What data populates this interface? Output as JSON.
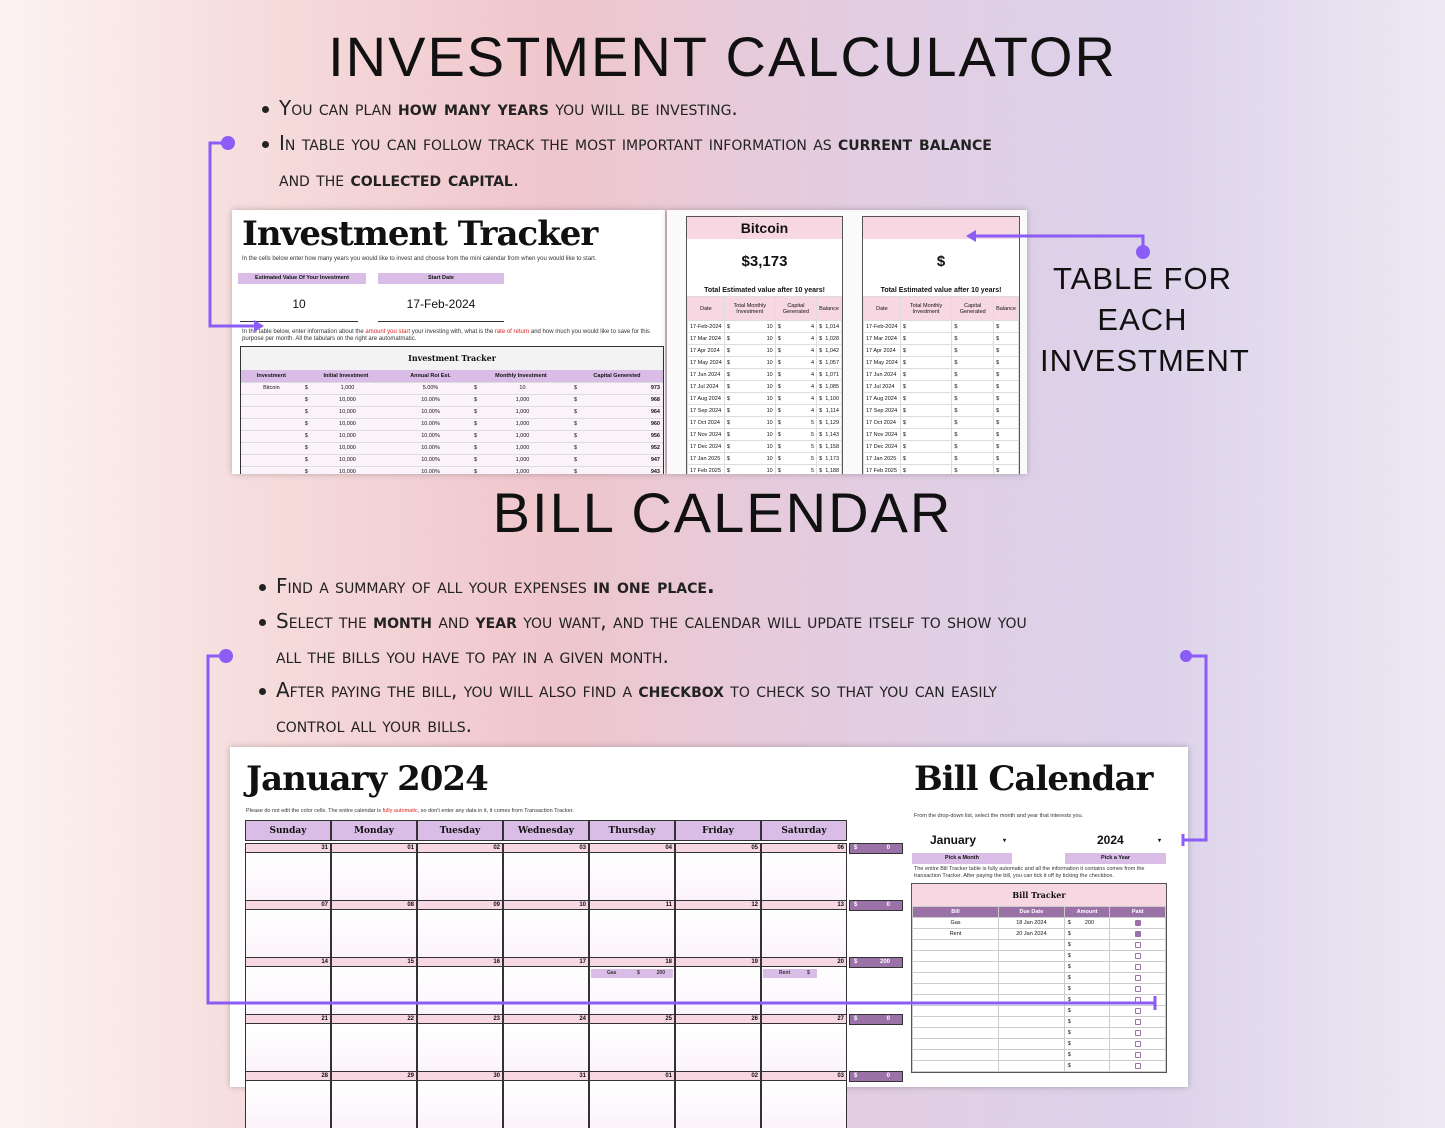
{
  "sections": {
    "investment": {
      "title": "INVESTMENT CALCULATOR",
      "bullets": [
        [
          {
            "t": "You can plan "
          },
          {
            "t": "how many years",
            "b": true
          },
          {
            "t": " you will be investing."
          }
        ],
        [
          {
            "t": "In table you can follow  track the most important information as "
          },
          {
            "t": "current balance",
            "b": true
          }
        ],
        [
          {
            "t": "and the "
          },
          {
            "t": "collected capital",
            "b": true
          },
          {
            "t": "."
          }
        ]
      ],
      "side_note": "TABLE FOR EACH INVESTMENT"
    },
    "bills": {
      "title": "BILL CALENDAR",
      "bullets": [
        [
          {
            "t": "Find a summary of all your expenses "
          },
          {
            "t": "in one place.",
            "b": true
          }
        ],
        [
          {
            "t": "Select the "
          },
          {
            "t": "month",
            "b": true
          },
          {
            "t": " and "
          },
          {
            "t": "year",
            "b": true
          },
          {
            "t": " you want, and the calendar will update itself to show you"
          }
        ],
        [
          {
            "t": "all the bills you have to pay in a given month."
          }
        ],
        [
          {
            "t": "After paying the bill, you will also find a "
          },
          {
            "t": "checkbox",
            "b": true
          },
          {
            "t": " to check so that you can easily"
          }
        ],
        [
          {
            "t": "control all your bills."
          }
        ]
      ]
    }
  },
  "tracker": {
    "title": "Investment Tracker",
    "intro": "In the cells below enter how many years you would like to invest and choose from the mini calendar from when you would like to start.",
    "years_label": "Estimated Value Of Your Investment",
    "years_value": "10",
    "start_label": "Start Date",
    "start_value": "17-Feb-2024",
    "note_a": "In the table below, enter information about the ",
    "note_red1": "amount you start",
    "note_b": " your investing with, what is the ",
    "note_red2": "rate of return",
    "note_c": " and how much you would like to save for this purpose per month. All the tabulars on the right are automatmatic.",
    "table_title": "Investment Tracker",
    "columns": [
      "Investment",
      "Initial Investment",
      "Annual Roi Est.",
      "Monthly Investment",
      "Capital Genereted"
    ],
    "rows": [
      [
        "Bitcoin",
        "1,000",
        "5.00%",
        "10",
        "973"
      ],
      [
        "",
        "10,000",
        "10.00%",
        "1,000",
        "968"
      ],
      [
        "",
        "10,000",
        "10.00%",
        "1,000",
        "964"
      ],
      [
        "",
        "10,000",
        "10.00%",
        "1,000",
        "960"
      ],
      [
        "",
        "10,000",
        "10.00%",
        "1,000",
        "956"
      ],
      [
        "",
        "10,000",
        "10.00%",
        "1,000",
        "952"
      ],
      [
        "",
        "10,000",
        "10.00%",
        "1,000",
        "947"
      ],
      [
        "",
        "10,000",
        "10.00%",
        "1,000",
        "943"
      ]
    ]
  },
  "mini_tables": [
    {
      "name": "Bitcoin",
      "total": "$3,173",
      "caption": "Total Estimated value after 10 years!",
      "columns": [
        "Date",
        "Total Monthly Investment",
        "Capital Generated",
        "Balance"
      ],
      "rows": [
        [
          "17-Feb-2024",
          "10",
          "4",
          "1,014"
        ],
        [
          "17 Mar 2024",
          "10",
          "4",
          "1,028"
        ],
        [
          "17 Apr 2024",
          "10",
          "4",
          "1,042"
        ],
        [
          "17 May 2024",
          "10",
          "4",
          "1,057"
        ],
        [
          "17 Jun 2024",
          "10",
          "4",
          "1,071"
        ],
        [
          "17 Jul 2024",
          "10",
          "4",
          "1,085"
        ],
        [
          "17 Aug 2024",
          "10",
          "4",
          "1,100"
        ],
        [
          "17 Sep 2024",
          "10",
          "4",
          "1,114"
        ],
        [
          "17 Oct 2024",
          "10",
          "5",
          "1,129"
        ],
        [
          "17 Nov 2024",
          "10",
          "5",
          "1,143"
        ],
        [
          "17 Dec 2024",
          "10",
          "5",
          "1,158"
        ],
        [
          "17 Jan 2025",
          "10",
          "5",
          "1,173"
        ],
        [
          "17 Feb 2025",
          "10",
          "5",
          "1,188"
        ]
      ]
    },
    {
      "name": "",
      "total": "$",
      "caption": "Total Estimated value after 10 years!",
      "columns": [
        "Date",
        "Total Monthly Investment",
        "Capital Generated",
        "Balance"
      ],
      "rows": [
        [
          "17-Feb-2024",
          "",
          "",
          ""
        ],
        [
          "17 Mar 2024",
          "",
          "",
          ""
        ],
        [
          "17 Apr 2024",
          "",
          "",
          ""
        ],
        [
          "17 May 2024",
          "",
          "",
          ""
        ],
        [
          "17 Jun 2024",
          "",
          "",
          ""
        ],
        [
          "17 Jul 2024",
          "",
          "",
          ""
        ],
        [
          "17 Aug 2024",
          "",
          "",
          ""
        ],
        [
          "17 Sep 2024",
          "",
          "",
          ""
        ],
        [
          "17 Oct 2024",
          "",
          "",
          ""
        ],
        [
          "17 Nov 2024",
          "",
          "",
          ""
        ],
        [
          "17 Dec 2024",
          "",
          "",
          ""
        ],
        [
          "17 Jan 2025",
          "",
          "",
          ""
        ],
        [
          "17 Feb 2025",
          "",
          "",
          ""
        ]
      ]
    }
  ],
  "calendar": {
    "title": "January 2024",
    "note_a": "Please do not edit the color cells. The entire calendar is ",
    "note_red": "fully automatic",
    "note_b": ", so don't enter any data in it, it comes from Transaction Tracker.",
    "days": [
      "Sunday",
      "Monday",
      "Tuesday",
      "Wednesday",
      "Thursday",
      "Friday",
      "Saturday"
    ],
    "weeks": [
      {
        "dates": [
          "31",
          "01",
          "02",
          "03",
          "04",
          "05",
          "06"
        ],
        "total": "0",
        "events": []
      },
      {
        "dates": [
          "07",
          "08",
          "09",
          "10",
          "11",
          "12",
          "13"
        ],
        "total": "0",
        "events": []
      },
      {
        "dates": [
          "14",
          "15",
          "16",
          "17",
          "18",
          "19",
          "20"
        ],
        "total": "200",
        "events": [
          {
            "day": 4,
            "bill": "Gas",
            "amount": "200"
          },
          {
            "day": 6,
            "bill": "Rent",
            "amount": ""
          }
        ]
      },
      {
        "dates": [
          "21",
          "22",
          "23",
          "24",
          "25",
          "26",
          "27"
        ],
        "total": "0",
        "events": []
      },
      {
        "dates": [
          "28",
          "29",
          "30",
          "31",
          "01",
          "02",
          "03"
        ],
        "total": "0",
        "events": []
      }
    ],
    "currency": "$"
  },
  "bill_calendar": {
    "title": "Bill Calendar",
    "intro": "From the drop-down list, select the month and year that interests you.",
    "month": "January",
    "month_label": "Pick a Month",
    "year": "2024",
    "year_label": "Pick a Year",
    "note": "The entire Bill Tracker table is fully automatic and all the information it contains comes from the transaction Tracker. After paying the bill, you can tick it off by ticking the checkbox.",
    "table_title": "Bill Tracker",
    "columns": [
      "Bill",
      "Due Date",
      "Amount",
      "Paid"
    ],
    "rows": [
      {
        "bill": "Gas",
        "due": "18 Jan 2024",
        "amount": "200",
        "paid": true
      },
      {
        "bill": "Rent",
        "due": "20 Jan 2024",
        "amount": "",
        "paid": true
      },
      {
        "bill": "",
        "due": "",
        "amount": "",
        "paid": false
      },
      {
        "bill": "",
        "due": "",
        "amount": "",
        "paid": false
      },
      {
        "bill": "",
        "due": "",
        "amount": "",
        "paid": false
      },
      {
        "bill": "",
        "due": "",
        "amount": "",
        "paid": false
      },
      {
        "bill": "",
        "due": "",
        "amount": "",
        "paid": false
      },
      {
        "bill": "",
        "due": "",
        "amount": "",
        "paid": false
      },
      {
        "bill": "",
        "due": "",
        "amount": "",
        "paid": false
      },
      {
        "bill": "",
        "due": "",
        "amount": "",
        "paid": false
      },
      {
        "bill": "",
        "due": "",
        "amount": "",
        "paid": false
      },
      {
        "bill": "",
        "due": "",
        "amount": "",
        "paid": false
      },
      {
        "bill": "",
        "due": "",
        "amount": "",
        "paid": false
      },
      {
        "bill": "",
        "due": "",
        "amount": "",
        "paid": false
      }
    ]
  },
  "colors": {
    "accent": "#8b5cf6",
    "lavender": "#d9bde6",
    "pink": "#f6d7e2",
    "plum": "#9b72a8"
  }
}
